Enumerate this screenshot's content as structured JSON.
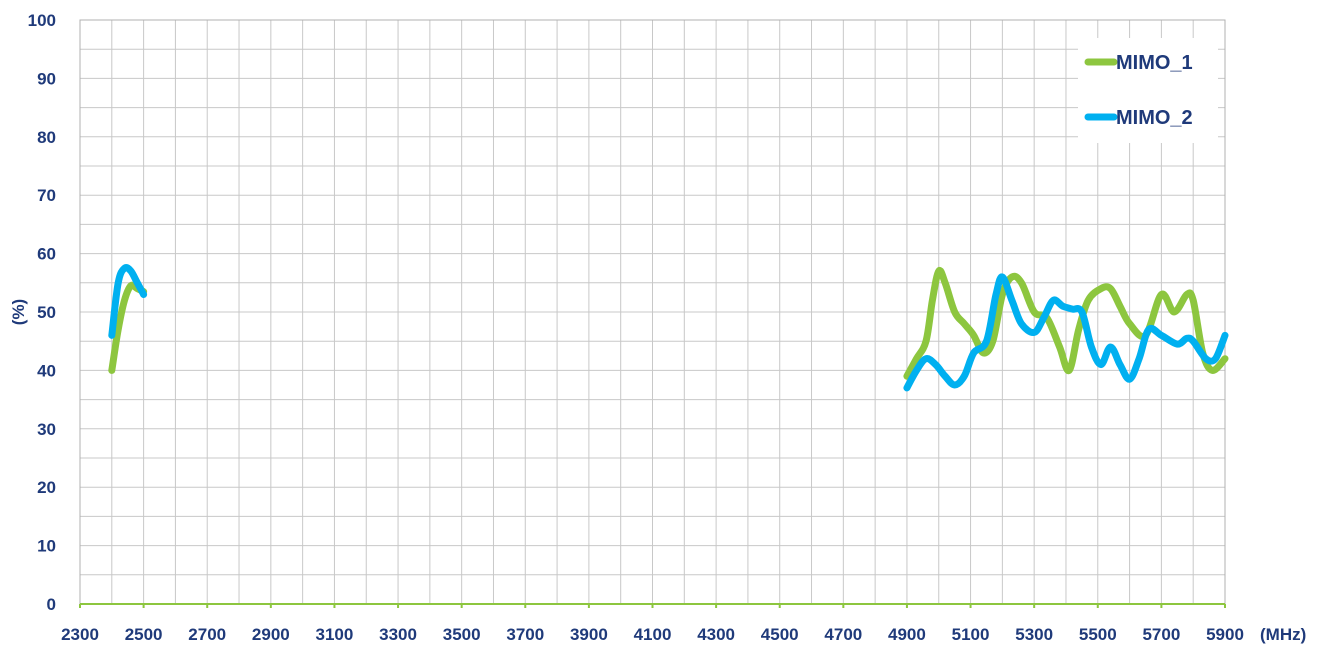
{
  "chart_data": {
    "type": "line",
    "xlabel": "(MHz)",
    "ylabel": "(%)",
    "xlim": [
      2300,
      5900
    ],
    "ylim": [
      0,
      100
    ],
    "x_ticks": [
      2300,
      2500,
      2700,
      2900,
      3100,
      3300,
      3500,
      3700,
      3900,
      4100,
      4300,
      4500,
      4700,
      4900,
      5100,
      5300,
      5500,
      5700,
      5900
    ],
    "y_ticks": [
      0,
      10,
      20,
      30,
      40,
      50,
      60,
      70,
      80,
      90,
      100
    ],
    "grid": true,
    "legend_position": "top-right",
    "series": [
      {
        "name": "MIMO_1",
        "color": "#8dc63f",
        "segments": [
          [
            [
              2400,
              40
            ],
            [
              2420,
              47
            ],
            [
              2440,
              52
            ],
            [
              2460,
              54.5
            ],
            [
              2480,
              54
            ],
            [
              2500,
              53.5
            ]
          ],
          [
            [
              4900,
              39
            ],
            [
              4930,
              42
            ],
            [
              4960,
              45
            ],
            [
              4980,
              52
            ],
            [
              5000,
              57
            ],
            [
              5020,
              55
            ],
            [
              5050,
              50
            ],
            [
              5080,
              48
            ],
            [
              5110,
              46
            ],
            [
              5140,
              43
            ],
            [
              5170,
              45
            ],
            [
              5200,
              53
            ],
            [
              5230,
              56
            ],
            [
              5260,
              55
            ],
            [
              5300,
              50
            ],
            [
              5340,
              49
            ],
            [
              5380,
              44
            ],
            [
              5410,
              40
            ],
            [
              5440,
              47
            ],
            [
              5470,
              52
            ],
            [
              5510,
              54
            ],
            [
              5540,
              54
            ],
            [
              5570,
              51
            ],
            [
              5600,
              48
            ],
            [
              5650,
              46
            ],
            [
              5700,
              53
            ],
            [
              5740,
              50
            ],
            [
              5780,
              53
            ],
            [
              5800,
              52
            ],
            [
              5830,
              43
            ],
            [
              5860,
              40
            ],
            [
              5900,
              42
            ]
          ]
        ]
      },
      {
        "name": "MIMO_2",
        "color": "#00b0f0",
        "segments": [
          [
            [
              2400,
              46
            ],
            [
              2420,
              55
            ],
            [
              2440,
              57.5
            ],
            [
              2460,
              57
            ],
            [
              2480,
              55
            ],
            [
              2500,
              53
            ]
          ],
          [
            [
              4900,
              37
            ],
            [
              4930,
              40
            ],
            [
              4960,
              42
            ],
            [
              4990,
              41
            ],
            [
              5020,
              39
            ],
            [
              5050,
              37.5
            ],
            [
              5080,
              39
            ],
            [
              5110,
              43
            ],
            [
              5150,
              45
            ],
            [
              5180,
              53
            ],
            [
              5200,
              56
            ],
            [
              5230,
              52
            ],
            [
              5260,
              48
            ],
            [
              5300,
              46.5
            ],
            [
              5330,
              49
            ],
            [
              5360,
              52
            ],
            [
              5390,
              51
            ],
            [
              5420,
              50.5
            ],
            [
              5450,
              50
            ],
            [
              5480,
              44
            ],
            [
              5510,
              41
            ],
            [
              5540,
              44
            ],
            [
              5570,
              41
            ],
            [
              5600,
              38.5
            ],
            [
              5630,
              42
            ],
            [
              5660,
              47
            ],
            [
              5700,
              46
            ],
            [
              5750,
              44.5
            ],
            [
              5780,
              45.5
            ],
            [
              5800,
              45
            ],
            [
              5840,
              42
            ],
            [
              5870,
              42
            ],
            [
              5900,
              46
            ]
          ]
        ]
      }
    ]
  }
}
